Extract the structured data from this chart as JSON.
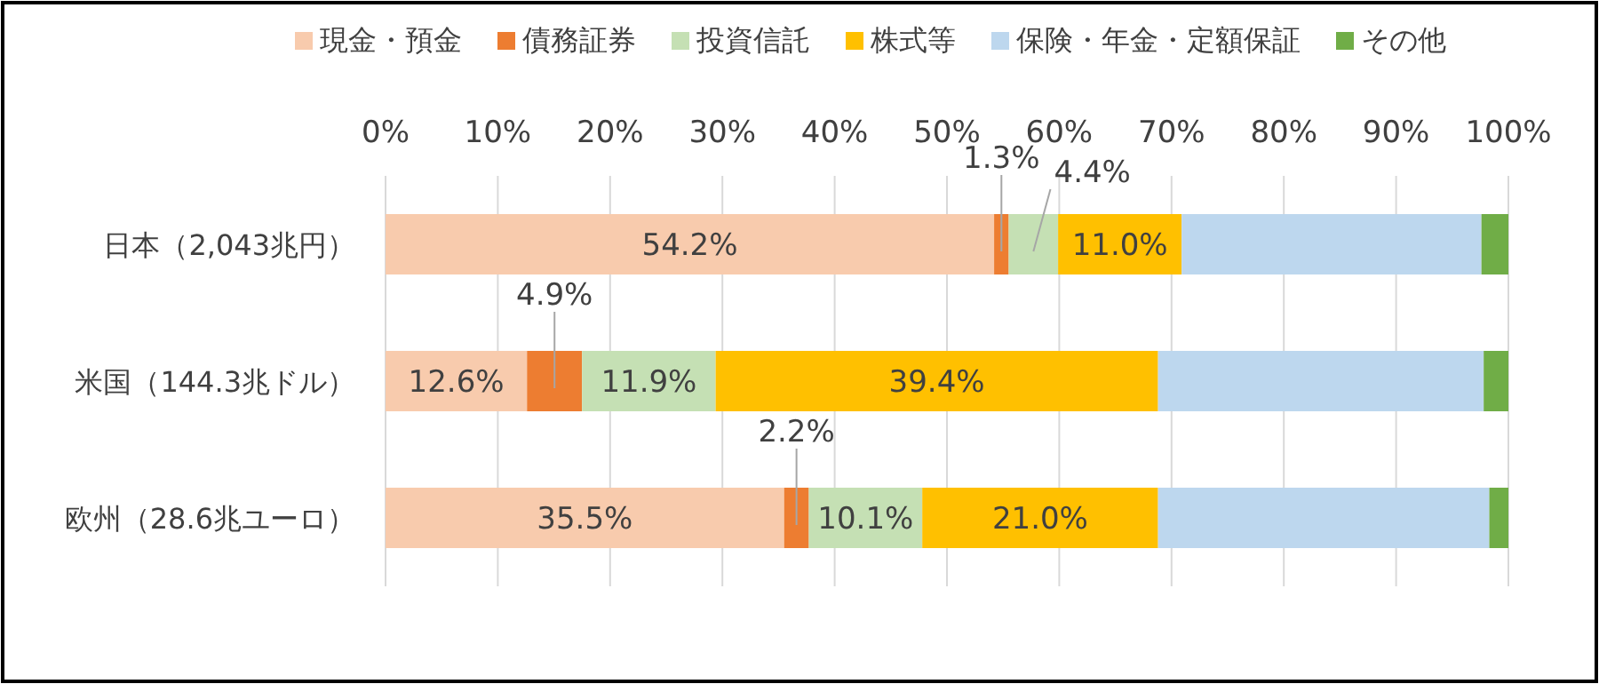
{
  "chart_data": {
    "type": "bar",
    "orientation": "horizontal",
    "stacked": true,
    "categories": [
      "日本（2,043兆円）",
      "米国（144.3兆ドル）",
      "欧州（28.6兆ユーロ）"
    ],
    "series": [
      {
        "name": "現金・預金",
        "color": "#f8cbad",
        "values": [
          54.2,
          12.6,
          35.5
        ],
        "value_labels": [
          "54.2%",
          "12.6%",
          "35.5%"
        ]
      },
      {
        "name": "債務証券",
        "color": "#ed7d31",
        "values": [
          1.3,
          4.9,
          2.2
        ],
        "value_labels": [
          "1.3%",
          "4.9%",
          "2.2%"
        ]
      },
      {
        "name": "投資信託",
        "color": "#c5e0b4",
        "values": [
          4.4,
          11.9,
          10.1
        ],
        "value_labels": [
          "4.4%",
          "11.9%",
          "10.1%"
        ]
      },
      {
        "name": "株式等",
        "color": "#ffc000",
        "values": [
          11.0,
          39.4,
          21.0
        ],
        "value_labels": [
          "11.0%",
          "39.4%",
          "21.0%"
        ]
      },
      {
        "name": "保険・年金・定額保証",
        "color": "#bdd7ee",
        "values": [
          26.7,
          29.0,
          29.5
        ],
        "value_labels": [
          null,
          null,
          null
        ]
      },
      {
        "name": "その他",
        "color": "#70ad47",
        "values": [
          2.4,
          2.2,
          1.7
        ],
        "value_labels": [
          null,
          null,
          null
        ]
      }
    ],
    "xlim": [
      0,
      100
    ],
    "xticks": [
      {
        "value": 0,
        "label": "0%"
      },
      {
        "value": 10,
        "label": "10%"
      },
      {
        "value": 20,
        "label": "20%"
      },
      {
        "value": 30,
        "label": "30%"
      },
      {
        "value": 40,
        "label": "40%"
      },
      {
        "value": 50,
        "label": "50%"
      },
      {
        "value": 60,
        "label": "60%"
      },
      {
        "value": 70,
        "label": "70%"
      },
      {
        "value": 80,
        "label": "80%"
      },
      {
        "value": 90,
        "label": "90%"
      },
      {
        "value": 100,
        "label": "100%"
      }
    ],
    "grid": "x",
    "legend": "top"
  }
}
